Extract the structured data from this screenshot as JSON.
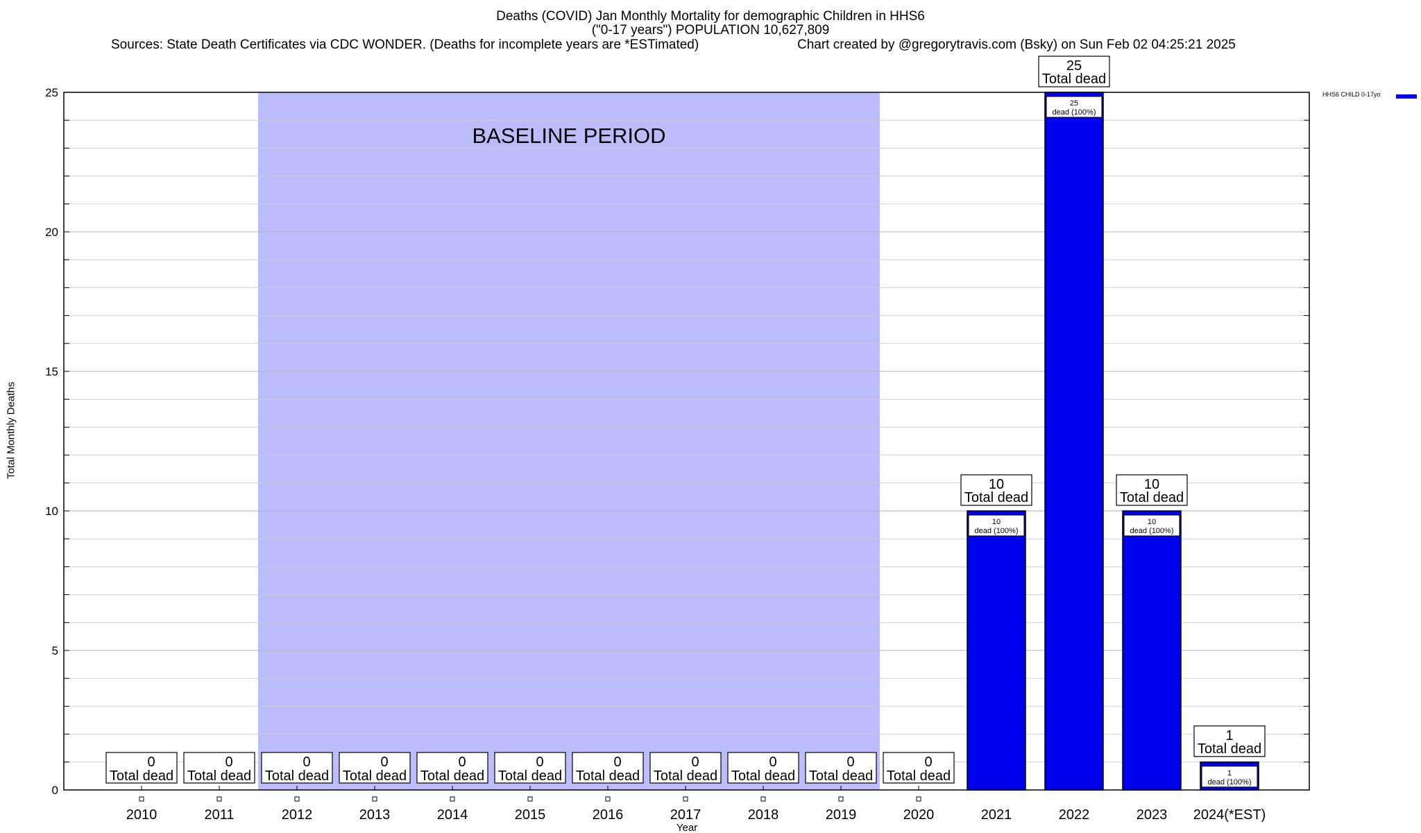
{
  "header": {
    "title_line1": "Deaths (COVID) Jan Monthly Mortality for demographic Children in HHS6",
    "title_line2": "(\"0-17 years\") POPULATION 10,627,809",
    "sources": "Sources: State Death Certificates via CDC WONDER. (Deaths for incomplete years are *ESTimated)",
    "credit": "Chart created by @gregorytravis.com (Bsky) on Sun Feb 02 04:25:21 2025"
  },
  "chart_data": {
    "type": "bar",
    "xlabel": "Year",
    "ylabel": "Total Monthly Deaths",
    "ylim": [
      0,
      25
    ],
    "yticks": [
      0,
      5,
      10,
      15,
      20,
      25
    ],
    "grid": true,
    "legend_position": "top-right",
    "bar_color": "#0000ee",
    "baseline_color": "#bcbcfc",
    "baseline_label": "BASELINE PERIOD",
    "baseline_range": [
      "2012",
      "2019"
    ],
    "categories": [
      "2010",
      "2011",
      "2012",
      "2013",
      "2014",
      "2015",
      "2016",
      "2017",
      "2018",
      "2019",
      "2020",
      "2021",
      "2022",
      "2023",
      "2024(*EST)"
    ],
    "series": [
      {
        "name": "HHS6 CHILD 0-17yo",
        "values": [
          0,
          0,
          0,
          0,
          0,
          0,
          0,
          0,
          0,
          0,
          0,
          10,
          25,
          10,
          1
        ]
      }
    ],
    "total_label": "Total dead",
    "inner_label": "dead (100%)"
  }
}
